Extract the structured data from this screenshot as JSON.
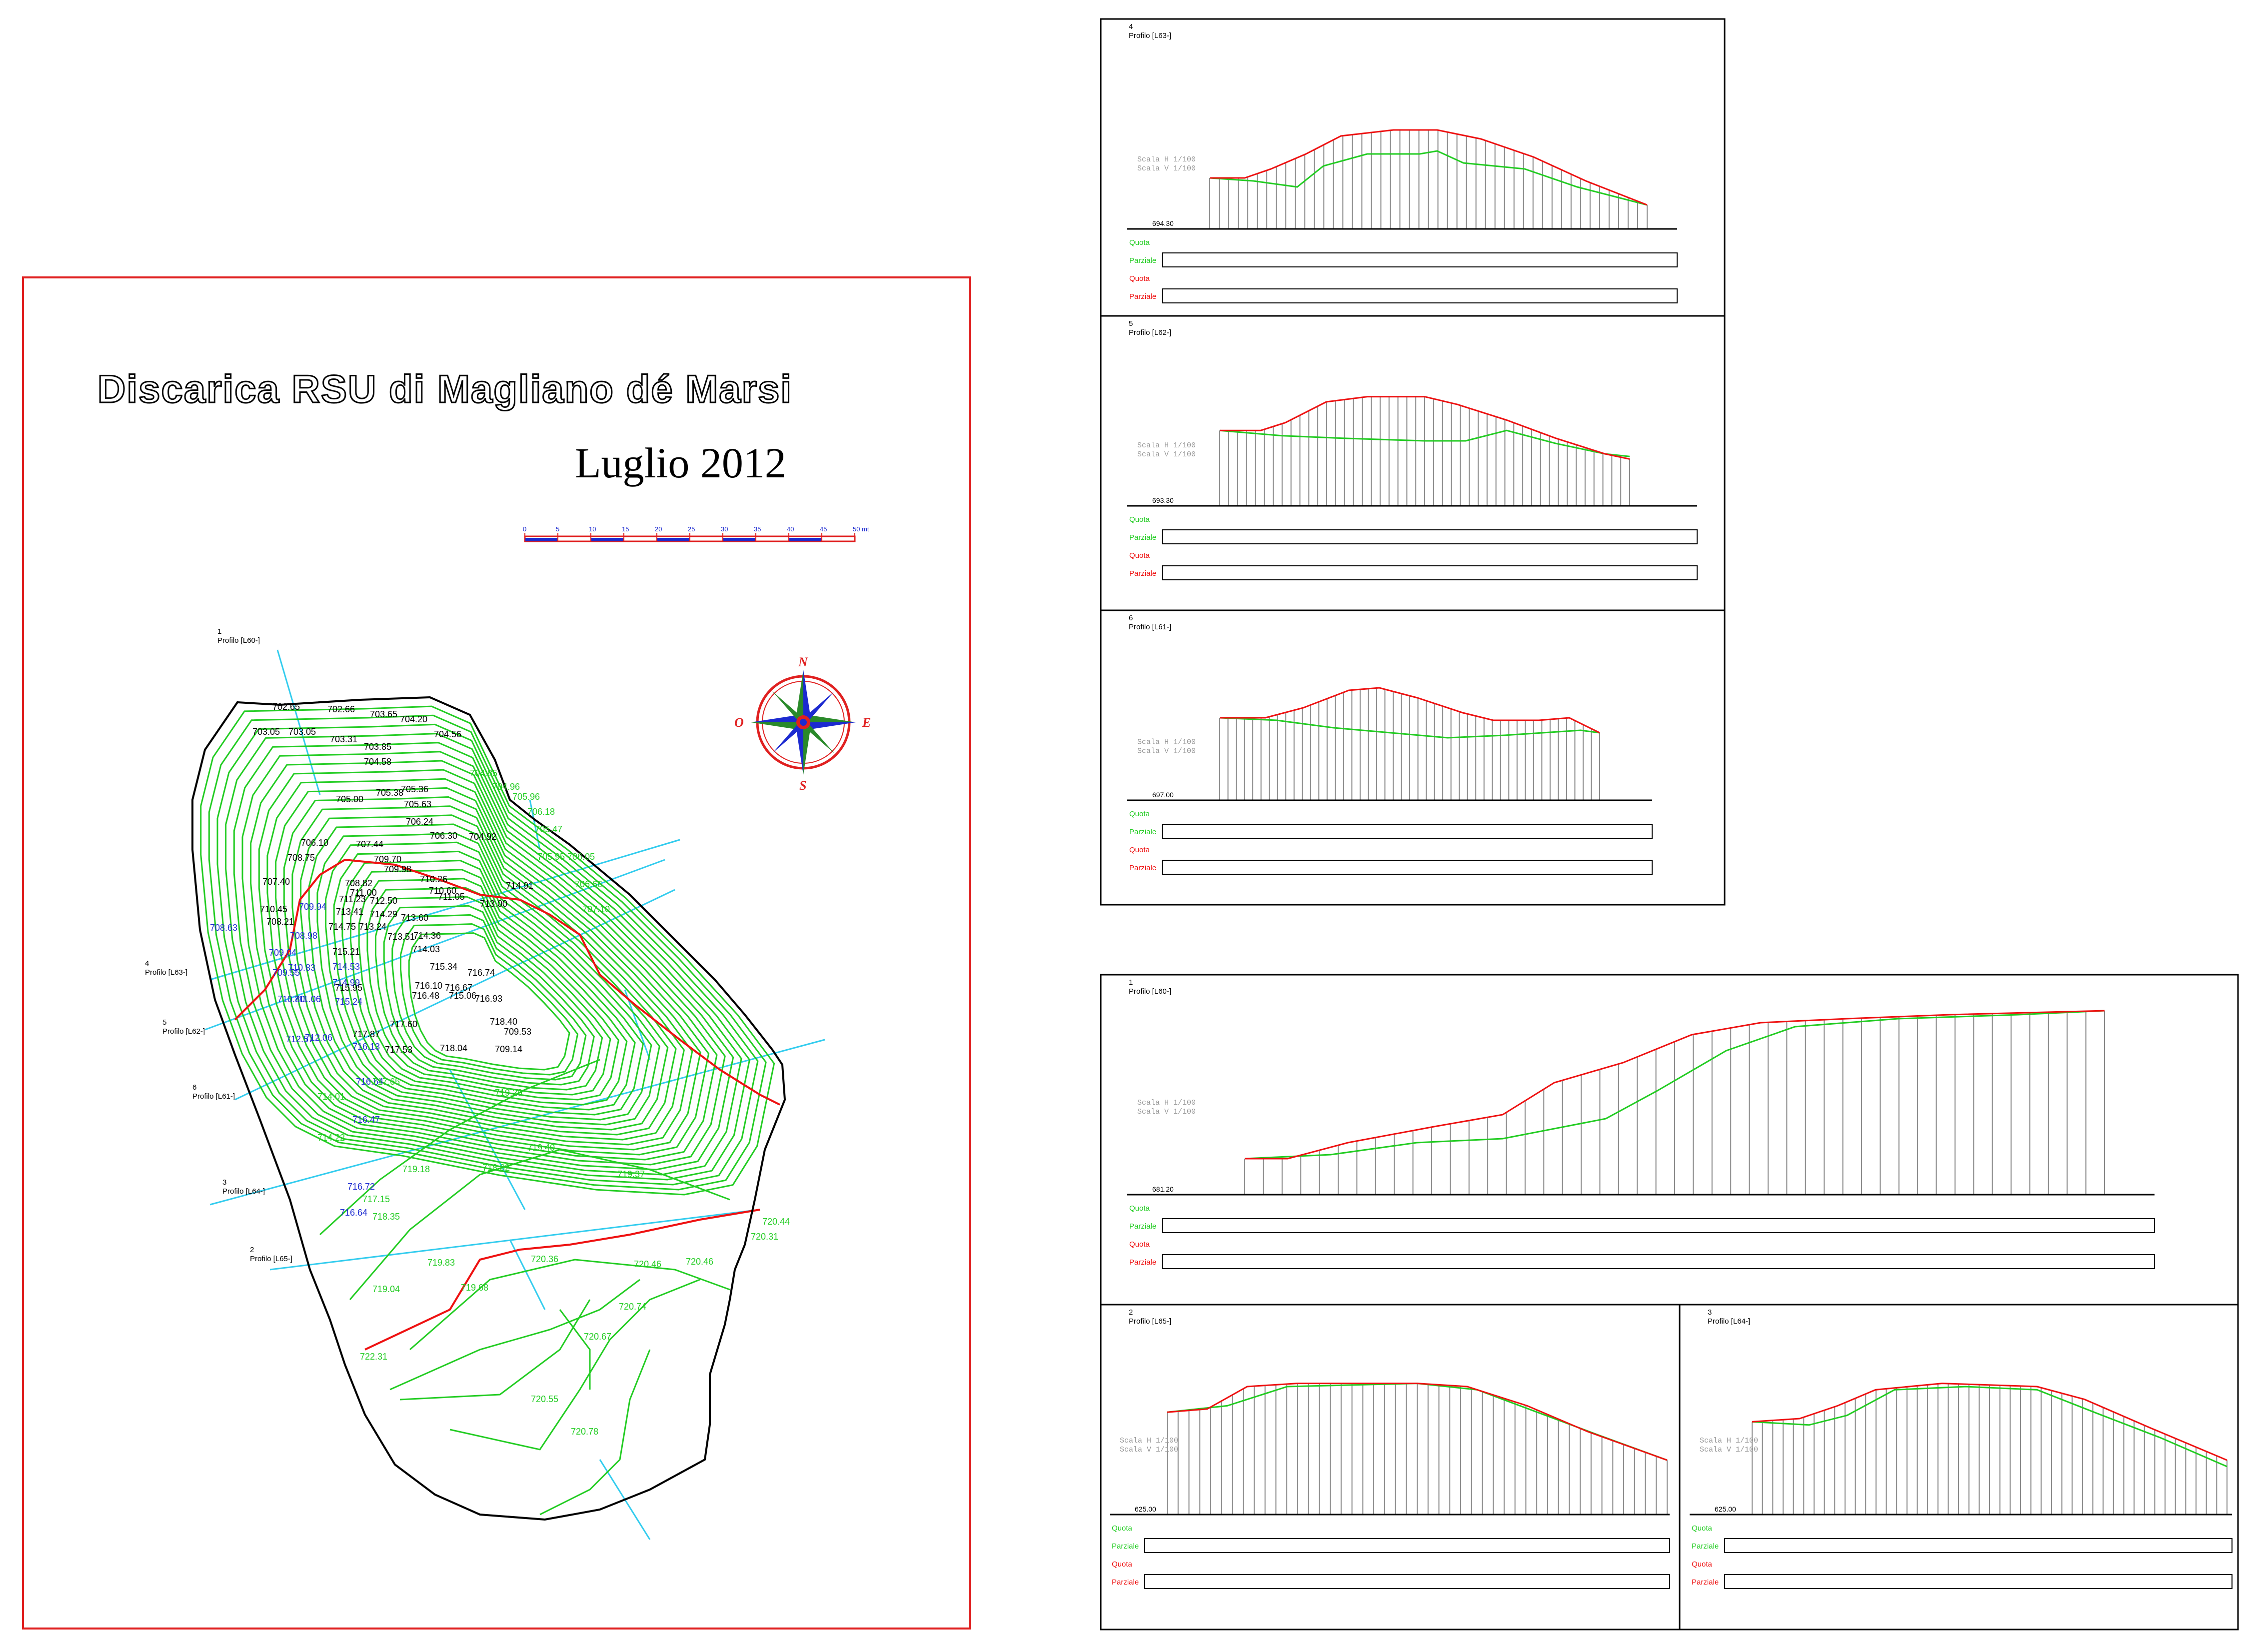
{
  "map_sheet": {
    "title": "Discarica RSU di Magliano dé Marsi",
    "date": "Luglio  2012",
    "scale_bar_labels": [
      "0",
      "5",
      "10",
      "15",
      "20",
      "25",
      "30",
      "35",
      "40",
      "45",
      "50 mt"
    ],
    "compass": {
      "n": "N",
      "s": "S",
      "e": "E",
      "o": "O"
    },
    "section_tags": [
      {
        "num": "1",
        "name": "Profilo [L60-]"
      },
      {
        "num": "4",
        "name": "Profilo [L63-]"
      },
      {
        "num": "5",
        "name": "Profilo [L62-]"
      },
      {
        "num": "6",
        "name": "Profilo [L61-]"
      },
      {
        "num": "3",
        "name": "Profilo [L64-]"
      },
      {
        "num": "2",
        "name": "Profilo [L65-]"
      }
    ],
    "black_spot_heights": [
      "702.65",
      "702.66",
      "703.65",
      "703.05",
      "703.05",
      "703.31",
      "703.85",
      "704.20",
      "704.56",
      "704.58",
      "705.36",
      "705.38",
      "705.00",
      "705.63",
      "706.24",
      "706.30",
      "704.92",
      "706.10",
      "708.75",
      "707.40",
      "707.44",
      "709.70",
      "709.98",
      "710.45",
      "708.21",
      "708.82",
      "711.00",
      "711.23",
      "712.50",
      "713.41",
      "713.24",
      "714.29",
      "713.60",
      "713.51",
      "714.36",
      "714.75",
      "715.21",
      "714.03",
      "715.34",
      "716.10",
      "716.74",
      "716.67",
      "715.06",
      "716.93",
      "715.95",
      "716.48",
      "717.60",
      "717.87",
      "717.53",
      "718.04",
      "718.40",
      "709.53",
      "709.14",
      "710.26",
      "710.60",
      "711.05",
      "713.00",
      "714.91"
    ],
    "blue_spot_heights": [
      "708.63",
      "709.94",
      "708.98",
      "709.04",
      "709.55",
      "710.80",
      "711.06",
      "710.83",
      "714.53",
      "714.99",
      "715.24",
      "712.57",
      "712.06",
      "716.13",
      "716.64",
      "716.47",
      "716.72",
      "716.64"
    ],
    "green_spot_heights": [
      "704.85",
      "704.96",
      "705.96",
      "706.18",
      "705.47",
      "705.95",
      "706.05",
      "706.66",
      "707.10",
      "717.65",
      "714.01",
      "714.22",
      "717.15",
      "718.35",
      "719.18",
      "719.29",
      "719.40",
      "719.37",
      "718.82",
      "719.83",
      "719.04",
      "719.68",
      "720.36",
      "720.46",
      "720.46",
      "720.74",
      "720.67",
      "720.55",
      "720.78",
      "720.44",
      "720.31",
      "722.31"
    ]
  },
  "profile_panels": [
    {
      "num": "4",
      "name": "Profilo [L63-]",
      "datum": "694.30",
      "scale_h": "Scala H  1/100",
      "scale_v": "Scala V  1/100"
    },
    {
      "num": "5",
      "name": "Profilo [L62-]",
      "datum": "693.30",
      "scale_h": "Scala H  1/100",
      "scale_v": "Scala V  1/100"
    },
    {
      "num": "6",
      "name": "Profilo [L61-]",
      "datum": "697.00",
      "scale_h": "Scala H  1/100",
      "scale_v": "Scala V  1/100"
    },
    {
      "num": "1",
      "name": "Profilo [L60-]",
      "datum": "681.20",
      "scale_h": "Scala H  1/100",
      "scale_v": "Scala V  1/100"
    },
    {
      "num": "2",
      "name": "Profilo [L65-]",
      "datum": "625.00",
      "scale_h": "Scala H  1/100",
      "scale_v": "Scala V  1/100"
    },
    {
      "num": "3",
      "name": "Profilo [L64-]",
      "datum": "625.00",
      "scale_h": "Scala H  1/100",
      "scale_v": "Scala V  1/100"
    }
  ],
  "table_row_labels": {
    "quota_green": "Quota",
    "parziale_green": "Parziale",
    "quota_red": "Quota",
    "parziale_red": "Parziale"
  },
  "colors": {
    "frame_red": "#e02020",
    "contour_green": "#22cc22",
    "survey_red": "#ee1111",
    "label_blue": "#1c2ad0",
    "section_cyan": "#33ccee",
    "ink": "#000000"
  }
}
